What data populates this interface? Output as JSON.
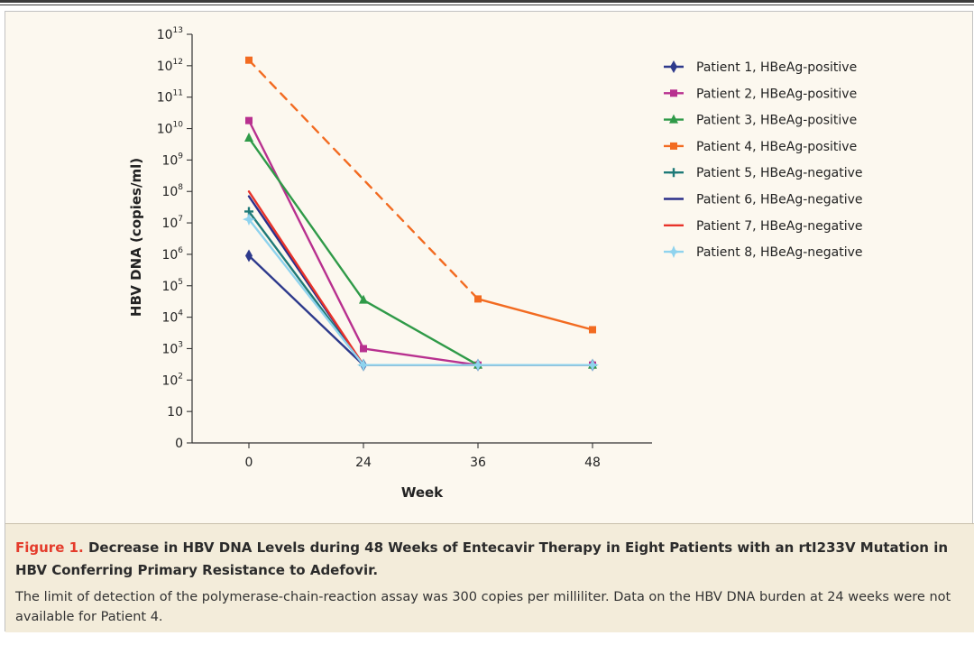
{
  "chart_data": {
    "type": "line",
    "ylabel": "HBV DNA (copies/ml)",
    "xlabel": "Week",
    "x_ticks": [
      0,
      24,
      36,
      48
    ],
    "y_scale": "log",
    "y_ticks": [
      {
        "base": "0",
        "exp": ""
      },
      {
        "base": "10",
        "exp": ""
      },
      {
        "base": "10",
        "exp": "2"
      },
      {
        "base": "10",
        "exp": "3"
      },
      {
        "base": "10",
        "exp": "4"
      },
      {
        "base": "10",
        "exp": "5"
      },
      {
        "base": "10",
        "exp": "6"
      },
      {
        "base": "10",
        "exp": "7"
      },
      {
        "base": "10",
        "exp": "8"
      },
      {
        "base": "10",
        "exp": "9"
      },
      {
        "base": "10",
        "exp": "10"
      },
      {
        "base": "10",
        "exp": "11"
      },
      {
        "base": "10",
        "exp": "12"
      },
      {
        "base": "10",
        "exp": "13"
      }
    ],
    "legend_position": "top-right",
    "series": [
      {
        "name": "Patient 1, HBeAg-positive",
        "color": "#2e3a8c",
        "marker": "diamond",
        "points": [
          {
            "x": 0,
            "y": 900000
          },
          {
            "x": 24,
            "y": 300
          },
          {
            "x": 36,
            "y": 300
          },
          {
            "x": 48,
            "y": 300
          }
        ]
      },
      {
        "name": "Patient 2, HBeAg-positive",
        "color": "#b8308f",
        "marker": "square",
        "points": [
          {
            "x": 0,
            "y": 18000000000
          },
          {
            "x": 24,
            "y": 1000
          },
          {
            "x": 36,
            "y": 300
          },
          {
            "x": 48,
            "y": 300
          }
        ]
      },
      {
        "name": "Patient 3, HBeAg-positive",
        "color": "#2f9a48",
        "marker": "triangle",
        "points": [
          {
            "x": 0,
            "y": 5000000000
          },
          {
            "x": 24,
            "y": 35000
          },
          {
            "x": 36,
            "y": 300
          },
          {
            "x": 48,
            "y": 300
          }
        ]
      },
      {
        "name": "Patient 4, HBeAg-positive",
        "color": "#f26b21",
        "marker": "square",
        "points": [
          {
            "x": 0,
            "y": 1500000000000
          },
          {
            "x": 36,
            "y": 38000
          },
          {
            "x": 48,
            "y": 4000
          }
        ],
        "dashed_segments": [
          [
            0,
            36
          ]
        ]
      },
      {
        "name": "Patient 5, HBeAg-negative",
        "color": "#1e7a78",
        "marker": "cross",
        "points": [
          {
            "x": 0,
            "y": 23000000
          },
          {
            "x": 24,
            "y": 300
          },
          {
            "x": 36,
            "y": 300
          },
          {
            "x": 48,
            "y": 300
          }
        ]
      },
      {
        "name": "Patient 6, HBeAg-negative",
        "color": "#2b2f8a",
        "marker": "none",
        "points": [
          {
            "x": 0,
            "y": 70000000
          },
          {
            "x": 24,
            "y": 300
          },
          {
            "x": 36,
            "y": 300
          },
          {
            "x": 48,
            "y": 300
          }
        ]
      },
      {
        "name": "Patient 7, HBeAg-negative",
        "color": "#e8332a",
        "marker": "none",
        "points": [
          {
            "x": 0,
            "y": 100000000
          },
          {
            "x": 24,
            "y": 300
          },
          {
            "x": 36,
            "y": 300
          },
          {
            "x": 48,
            "y": 300
          }
        ]
      },
      {
        "name": "Patient 8, HBeAg-negative",
        "color": "#8fd3ee",
        "marker": "star",
        "points": [
          {
            "x": 0,
            "y": 13000000
          },
          {
            "x": 24,
            "y": 300
          },
          {
            "x": 36,
            "y": 300
          },
          {
            "x": 48,
            "y": 300
          }
        ]
      }
    ]
  },
  "caption": {
    "label": "Figure 1.",
    "title": "Decrease in HBV DNA Levels during 48 Weeks of Entecavir Therapy in Eight Patients with an rtI233V Mutation in HBV Conferring Primary Resistance to Adefovir.",
    "body": "The limit of detection of the polymerase-chain-reaction assay was 300 copies per milliliter. Data on the HBV DNA burden at 24 weeks were not available for Patient 4."
  }
}
